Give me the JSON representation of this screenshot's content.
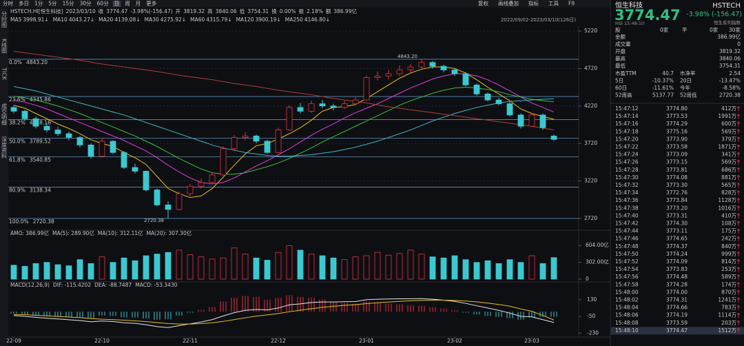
{
  "toolbar": {
    "left": [
      "分时",
      "多日",
      "1分",
      "5分",
      "15分",
      "30分",
      "60分",
      "日",
      "周",
      "月",
      "更多"
    ],
    "active": 7,
    "right": [
      "复权",
      "画线叠加",
      "指标",
      "工具",
      "F9"
    ]
  },
  "side_tabs": [
    "分时图",
    "K线图",
    "TICK",
    "成交明细",
    "深度资料"
  ],
  "chart_data": {
    "type": "candlestick",
    "info": [
      "HSTECH.HI[恒生科技]",
      "2023/03/10",
      "收",
      "3774.47",
      "-3.98%(-156.47)",
      "开",
      "3819.32",
      "高",
      "3840.06",
      "低",
      "3754.31",
      "换",
      "0.00%",
      "振",
      "2.18%",
      "额",
      "386.99亿"
    ],
    "range_label": "2022/09/02-2023/03/10(126日)",
    "ma_legend": [
      {
        "name": "MA5",
        "value": "3998.91↓",
        "color": "#e8e8e8"
      },
      {
        "name": "MA10",
        "value": "4043.27↓",
        "color": "#e8c020"
      },
      {
        "name": "MA20",
        "value": "4139.08↓",
        "color": "#e040e0"
      },
      {
        "name": "MA30",
        "value": "4275.92↓",
        "color": "#3cc040"
      },
      {
        "name": "MA60",
        "value": "4315.79↓",
        "color": "#40b8c8"
      },
      {
        "name": "MA120",
        "value": "3900.19↓",
        "color": "#d07030"
      },
      {
        "name": "MA250",
        "value": "4146.80↓",
        "color": "#e04848"
      }
    ],
    "categories": [
      "22-09",
      null,
      null,
      null,
      null,
      null,
      null,
      null,
      "22-10",
      null,
      null,
      null,
      null,
      null,
      null,
      null,
      "22-11",
      null,
      null,
      null,
      null,
      null,
      null,
      null,
      "22-12",
      null,
      null,
      null,
      null,
      null,
      null,
      null,
      "23-01",
      null,
      null,
      null,
      null,
      null,
      null,
      null,
      "23-02",
      null,
      null,
      null,
      null,
      null,
      null,
      "23-03",
      null,
      null
    ],
    "open": [
      4200,
      4150,
      4050,
      3950,
      3900,
      3850,
      3800,
      3700,
      3550,
      3750,
      3600,
      3400,
      3350,
      3100,
      2900,
      2840,
      3050,
      3150,
      3200,
      3300,
      3650,
      3800,
      3820,
      3750,
      3600,
      3900,
      4200,
      4150,
      4250,
      4220,
      4200,
      4250,
      4300,
      4600,
      4620,
      4650,
      4700,
      4740,
      4800,
      4750,
      4700,
      4650,
      4500,
      4380,
      4300,
      4250,
      4100,
      3950,
      4100,
      3819.32
    ],
    "high": [
      4230,
      4170,
      4080,
      3990,
      3940,
      3880,
      3820,
      3720,
      3790,
      3760,
      3620,
      3450,
      3360,
      3120,
      2950,
      3080,
      3180,
      3250,
      3330,
      3680,
      3830,
      3870,
      3840,
      3770,
      3930,
      4230,
      4260,
      4290,
      4300,
      4250,
      4290,
      4340,
      4630,
      4680,
      4700,
      4760,
      4780,
      4843.2,
      4820,
      4770,
      4720,
      4670,
      4520,
      4400,
      4330,
      4270,
      4120,
      4130,
      4120,
      3840.06
    ],
    "low": [
      4120,
      4020,
      3920,
      3870,
      3820,
      3760,
      3670,
      3520,
      3540,
      3580,
      3380,
      3320,
      3080,
      2880,
      2720.38,
      2830,
      3020,
      3120,
      3180,
      3290,
      3630,
      3760,
      3720,
      3580,
      3590,
      3890,
      4120,
      4130,
      4190,
      4160,
      4180,
      4230,
      4290,
      4560,
      4580,
      4620,
      4660,
      4710,
      4720,
      4670,
      4620,
      4480,
      4360,
      4280,
      4230,
      4080,
      3920,
      3940,
      3900,
      3754.31
    ],
    "close": [
      4150,
      4050,
      3950,
      3900,
      3850,
      3800,
      3700,
      3550,
      3750,
      3600,
      3400,
      3350,
      3100,
      2900,
      2840,
      3050,
      3150,
      3200,
      3300,
      3650,
      3800,
      3820,
      3750,
      3600,
      3900,
      4200,
      4150,
      4250,
      4220,
      4200,
      4250,
      4300,
      4600,
      4620,
      4650,
      4700,
      4740,
      4800,
      4750,
      4700,
      4650,
      4500,
      4380,
      4300,
      4250,
      4100,
      3950,
      4100,
      3930.94,
      3774.47
    ],
    "up_color": "#e8323c",
    "down_color": "#3cc8d0",
    "series": [
      {
        "name": "MA10",
        "color": "#e8c020",
        "values": [
          4230,
          4190,
          4120,
          4050,
          3980,
          3920,
          3850,
          3770,
          3720,
          3680,
          3600,
          3530,
          3440,
          3280,
          3120,
          3050,
          3000,
          3020,
          3120,
          3270,
          3430,
          3580,
          3690,
          3720,
          3780,
          3850,
          3930,
          4030,
          4150,
          4200,
          4210,
          4240,
          4320,
          4410,
          4500,
          4590,
          4660,
          4710,
          4740,
          4740,
          4720,
          4660,
          4570,
          4470,
          4380,
          4290,
          4180,
          4120,
          4080,
          4043.27
        ]
      },
      {
        "name": "MA20",
        "color": "#e040e0",
        "values": [
          4300,
          4270,
          4230,
          4180,
          4120,
          4060,
          4000,
          3940,
          3880,
          3820,
          3760,
          3690,
          3620,
          3530,
          3430,
          3340,
          3260,
          3200,
          3180,
          3200,
          3260,
          3340,
          3420,
          3490,
          3570,
          3650,
          3740,
          3830,
          3910,
          3980,
          4060,
          4130,
          4190,
          4250,
          4320,
          4390,
          4460,
          4520,
          4580,
          4620,
          4650,
          4650,
          4620,
          4570,
          4500,
          4420,
          4340,
          4260,
          4200,
          4139.08
        ]
      },
      {
        "name": "MA30",
        "color": "#3cc040",
        "values": [
          4350,
          4330,
          4300,
          4260,
          4220,
          4170,
          4120,
          4060,
          4000,
          3940,
          3880,
          3820,
          3750,
          3680,
          3600,
          3520,
          3450,
          3380,
          3330,
          3310,
          3310,
          3330,
          3370,
          3410,
          3460,
          3520,
          3590,
          3660,
          3740,
          3810,
          3880,
          3950,
          4020,
          4090,
          4160,
          4230,
          4290,
          4340,
          4390,
          4430,
          4460,
          4470,
          4460,
          4440,
          4410,
          4370,
          4340,
          4310,
          4290,
          4275.92
        ]
      },
      {
        "name": "MA60",
        "color": "#40b8c8",
        "values": [
          4480,
          4450,
          4420,
          4380,
          4340,
          4300,
          4260,
          4220,
          4180,
          4140,
          4100,
          4050,
          4000,
          3950,
          3900,
          3850,
          3800,
          3750,
          3700,
          3660,
          3630,
          3600,
          3580,
          3560,
          3550,
          3550,
          3560,
          3570,
          3590,
          3610,
          3640,
          3670,
          3710,
          3750,
          3800,
          3850,
          3900,
          3960,
          4020,
          4070,
          4120,
          4160,
          4200,
          4230,
          4260,
          4280,
          4290,
          4300,
          4310,
          4315.79
        ]
      },
      {
        "name": "MA120",
        "color": "#b04038",
        "values": [
          4950,
          4930,
          4910,
          4890,
          4870,
          4850,
          4830,
          4805,
          4780,
          4760,
          4740,
          4720,
          4700,
          4680,
          4655,
          4630,
          4610,
          4590,
          4570,
          4545,
          4520,
          4500,
          4480,
          4455,
          4430,
          4410,
          4390,
          4370,
          4345,
          4320,
          4300,
          4280,
          4260,
          4235,
          4210,
          4190,
          4170,
          4150,
          4130,
          4110,
          4090,
          4070,
          4050,
          4030,
          4010,
          3990,
          3970,
          3950,
          3925,
          3900.19
        ]
      }
    ],
    "ylim": [
      2600,
      5284
    ],
    "yticks": [
      2720,
      3220,
      3720,
      4220,
      4720,
      5220
    ],
    "grid": true,
    "fib": [
      {
        "label": "0.0%",
        "value": 4843.2,
        "value_label": "4843.20"
      },
      {
        "label": "23.6%",
        "value": 4345.86,
        "value_label": "4345.86"
      },
      {
        "label": "38.2%",
        "value": 4038.16,
        "value_label": "4038.16"
      },
      {
        "label": "50.0%",
        "value": 3789.52,
        "value_label": "3789.52"
      },
      {
        "label": "61.8%",
        "value": 3540.85,
        "value_label": "3540.85"
      },
      {
        "label": "80.9%",
        "value": 3138.34,
        "value_label": "3138.34"
      },
      {
        "label": "100.0%",
        "value": 2720.38,
        "value_label": "2720.38"
      }
    ],
    "annotations": [
      {
        "text": "4843.20",
        "value": 4843.2,
        "index": 37
      },
      {
        "text": "2720.38",
        "value": 2720.38,
        "index": 14
      }
    ],
    "volume": {
      "legend": [
        "AMO: 386.99亿",
        "MA(5): 289.90亿",
        "MA(10): 312.11亿",
        "MA(20): 307.30亿"
      ],
      "legend_colors": [
        "#d8d8d8",
        "#d8d8d8",
        "#e8c020",
        "#e040e0"
      ],
      "values": [
        250,
        230,
        280,
        300,
        260,
        240,
        350,
        280,
        400,
        300,
        380,
        330,
        420,
        450,
        480,
        520,
        440,
        400,
        360,
        380,
        560,
        450,
        380,
        340,
        480,
        600,
        520,
        450,
        420,
        380,
        350,
        400,
        420,
        480,
        430,
        460,
        520,
        450,
        400,
        380,
        420,
        350,
        300,
        330,
        280,
        350,
        300,
        420,
        280,
        386.99
      ],
      "ylim": [
        0,
        680
      ],
      "yticks": [
        {
          "value": 604,
          "label": "604.00亿"
        },
        {
          "value": 302,
          "label": "302.00亿"
        },
        0
      ]
    },
    "macd": {
      "legend": [
        "MACD(12,26,9)",
        "DIF: -115.4202",
        "DEA: -88.7487",
        "MACD: -53.3430"
      ],
      "legend_colors": [
        "#d8d8d8",
        "#e8e8e8",
        "#e8c020",
        "#e040e0"
      ],
      "values": [
        -20,
        -35,
        -45,
        -50,
        -55,
        -58,
        -62,
        -70,
        -40,
        -45,
        -60,
        -62,
        -72,
        -85,
        -80,
        -40,
        -10,
        20,
        50,
        110,
        150,
        170,
        160,
        130,
        150,
        180,
        160,
        150,
        130,
        110,
        95,
        85,
        110,
        100,
        90,
        80,
        70,
        65,
        50,
        35,
        15,
        -10,
        -30,
        -45,
        -55,
        -70,
        -85,
        -60,
        -55,
        -53.343
      ],
      "series": [
        {
          "name": "DIF",
          "color": "#e8e8e8",
          "values": [
            -40,
            -50,
            -60,
            -70,
            -78,
            -86,
            -95,
            -108,
            -100,
            -105,
            -118,
            -125,
            -140,
            -160,
            -170,
            -150,
            -130,
            -110,
            -85,
            -45,
            -10,
            15,
            25,
            20,
            40,
            75,
            85,
            100,
            105,
            105,
            108,
            110,
            130,
            135,
            138,
            140,
            140,
            142,
            135,
            125,
            112,
            90,
            65,
            40,
            15,
            -15,
            -50,
            -55,
            -85,
            -115.4202
          ]
        },
        {
          "name": "DEA",
          "color": "#e8c020",
          "values": [
            -30,
            -32,
            -38,
            -45,
            -51,
            -57,
            -64,
            -73,
            -80,
            -85,
            -91,
            -98,
            -106,
            -117,
            -128,
            -132,
            -132,
            -128,
            -119,
            -104,
            -85,
            -65,
            -47,
            -34,
            -19,
            0,
            17,
            33,
            48,
            59,
            69,
            77,
            88,
            97,
            105,
            112,
            118,
            122,
            125,
            125,
            122,
            116,
            106,
            93,
            78,
            60,
            30,
            5,
            -40,
            -88.7487
          ]
        }
      ],
      "ylim": [
        -280,
        240
      ],
      "yticks": [
        -230,
        -50,
        130
      ]
    }
  },
  "quote": {
    "name": "恒生科技",
    "code": "HSTECH",
    "price": "3774.47",
    "change": "-3.98% (-156.47)",
    "exchange": "HSI 15:48:10",
    "series_name": "恒生系列指数",
    "breadth": [
      "股",
      "0家",
      "平",
      "0家",
      "30家"
    ],
    "rows": [
      [
        "金额",
        "386.99亿"
      ],
      [
        "成交量",
        "0"
      ],
      [
        "开盘",
        "3819.32"
      ],
      [
        "最高",
        "3840.06"
      ],
      [
        "最低",
        "3754.31"
      ]
    ],
    "pairs": [
      [
        "市盈TTM",
        "40.7",
        "市净率",
        "2.54"
      ],
      [
        "5日",
        "-10.37%",
        "20日",
        "-13.47%"
      ],
      [
        "60日",
        "-11.61%",
        "今年",
        "-8.58%"
      ],
      [
        "52周高",
        "5137.77",
        "52周低",
        "2720.38"
      ]
    ],
    "trades": {
      "time": [
        "15:47:12",
        "15:47:14",
        "15:47:16",
        "15:47:18",
        "15:47:20",
        "15:47:22",
        "15:47:24",
        "15:47:26",
        "15:47:28",
        "15:47:30",
        "15:47:32",
        "15:47:34",
        "15:47:36",
        "15:47:38",
        "15:47:40",
        "15:47:42",
        "15:47:44",
        "15:47:46",
        "15:47:48",
        "15:47:50",
        "15:47:52",
        "15:47:54",
        "15:47:56",
        "15:47:58",
        "15:48:00",
        "15:48:02",
        "15:48:04",
        "15:48:06",
        "15:48:08",
        "15:48:10"
      ],
      "price": [
        "3774.80",
        "3773.53",
        "3774.29",
        "3775.16",
        "3773.90",
        "3773.58",
        "3773.09",
        "3773.15",
        "3773.81",
        "3774.08",
        "3773.30",
        "3772.76",
        "3773.84",
        "3773.20",
        "3773.31",
        "3774.30",
        "3773.11",
        "3774.65",
        "3774.37",
        "3774.24",
        "3774.09",
        "3773.83",
        "3774.48",
        "3774.28",
        "3774.00",
        "3774.31",
        "3774.66",
        "3774.19",
        "3773.59",
        "3774.47"
      ],
      "volume": [
        "412万",
        "1991万",
        "600万",
        "569万",
        "379万",
        "1871万",
        "341万",
        "569万",
        "686万",
        "881万",
        "565万",
        "828万",
        "1128万",
        "1016万",
        "410万",
        "108万",
        "175万",
        "242万",
        "840万",
        "999万",
        "814万",
        "253万",
        "589万",
        "174万",
        "870万",
        "1241万",
        "783万",
        "1114万",
        "203万",
        "1512万"
      ]
    }
  }
}
